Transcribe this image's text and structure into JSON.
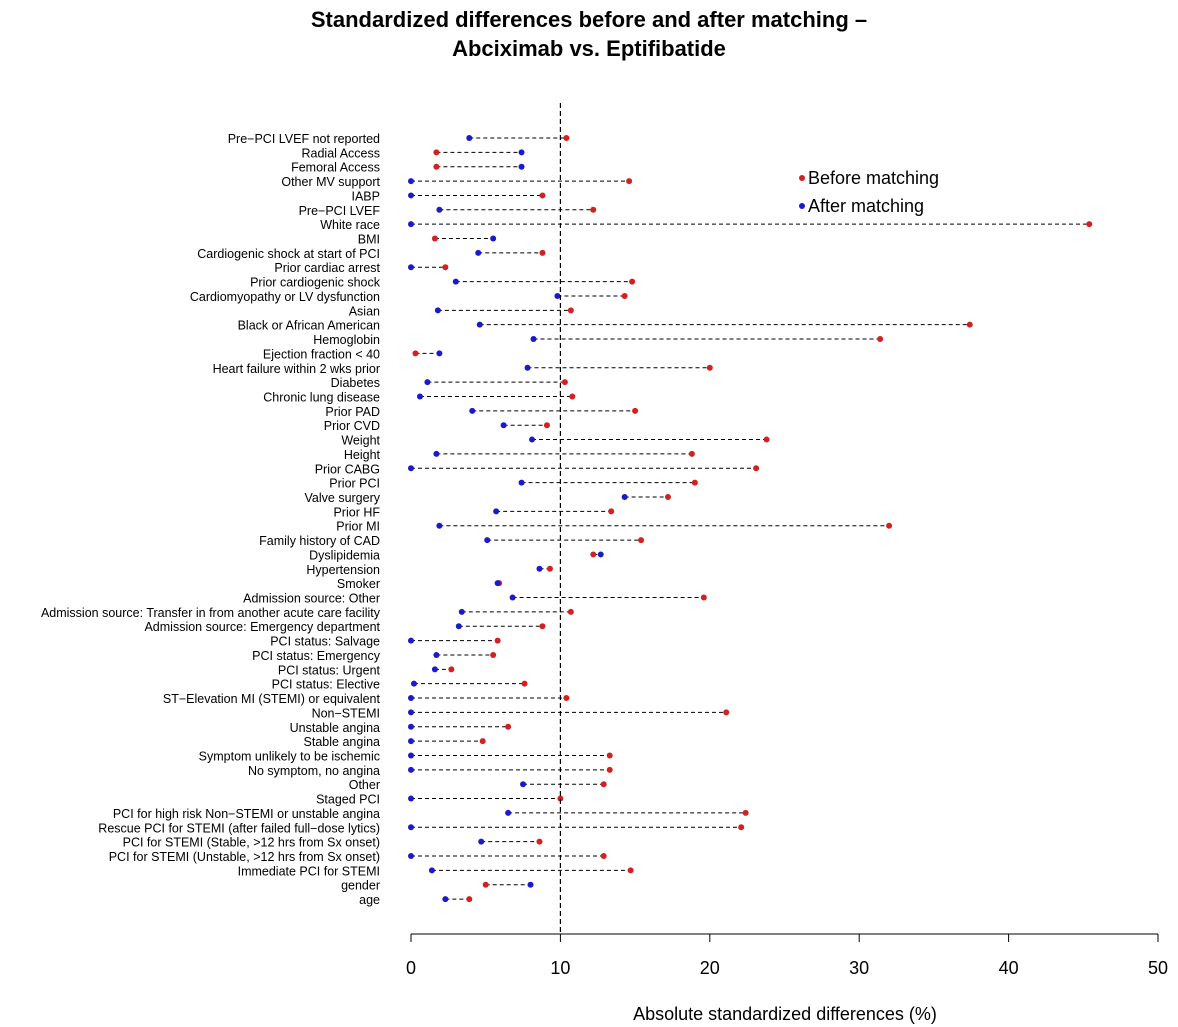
{
  "title_line1": "Standardized differences before and after matching –",
  "title_line2": "Abciximab vs. Eptifibatide",
  "colors": {
    "before": "#d42020",
    "after": "#1a1acc"
  },
  "chart_data": {
    "type": "scatter",
    "title": "Standardized differences before and after matching – Abciximab vs. Eptifibatide",
    "xlabel": "Absolute standardized differences (%)",
    "ylabel": "",
    "xlim": [
      0,
      50
    ],
    "xticks": [
      0,
      10,
      20,
      30,
      40,
      50
    ],
    "reference_line": 10,
    "legend_position": "top-right",
    "legend": [
      "Before matching",
      "After matching"
    ],
    "categories": [
      "Pre−PCI LVEF not reported",
      "Radial Access",
      "Femoral Access",
      "Other MV support",
      "IABP",
      "Pre−PCI LVEF",
      "White race",
      "BMI",
      "Cardiogenic shock at start of PCI",
      "Prior cardiac arrest",
      "Prior cardiogenic shock",
      "Cardiomyopathy or LV dysfunction",
      "Asian",
      "Black or African American",
      "Hemoglobin",
      "Ejection fraction < 40",
      "Heart failure within 2 wks prior",
      "Diabetes",
      "Chronic lung disease",
      "Prior PAD",
      "Prior CVD",
      "Weight",
      "Height",
      "Prior CABG",
      "Prior PCI",
      "Valve surgery",
      "Prior HF",
      "Prior MI",
      "Family history of CAD",
      "Dyslipidemia",
      "Hypertension",
      "Smoker",
      "Admission source:  Other",
      "Admission source:  Transfer in from another acute care facility",
      "Admission source:  Emergency department",
      "PCI status: Salvage",
      "PCI status: Emergency",
      "PCI status: Urgent",
      "PCI status: Elective",
      "ST−Elevation MI (STEMI) or equivalent",
      "Non−STEMI",
      "Unstable angina",
      "Stable angina",
      "Symptom unlikely to be ischemic",
      "No symptom, no angina",
      "Other",
      "Staged PCI",
      "PCI for high risk Non−STEMI or unstable angina",
      "Rescue PCI for STEMI (after failed full−dose lytics)",
      "PCI for STEMI (Stable, >12 hrs from Sx onset)",
      "PCI for STEMI (Unstable, >12 hrs from Sx onset)",
      "Immediate PCI for STEMI",
      "gender",
      "age"
    ],
    "series": [
      {
        "name": "Before matching",
        "values": [
          10.4,
          1.7,
          1.7,
          14.6,
          8.8,
          12.2,
          45.4,
          1.6,
          8.8,
          2.3,
          14.8,
          14.3,
          10.7,
          37.4,
          31.4,
          0.3,
          20.0,
          10.3,
          10.8,
          15.0,
          9.1,
          23.8,
          18.8,
          23.1,
          19.0,
          17.2,
          13.4,
          32.0,
          15.4,
          12.2,
          9.3,
          5.9,
          19.6,
          10.7,
          8.8,
          5.8,
          5.5,
          2.7,
          7.6,
          10.4,
          21.1,
          6.5,
          4.8,
          13.3,
          13.3,
          12.9,
          10.0,
          22.4,
          22.1,
          8.6,
          12.9,
          14.7,
          5.0,
          3.9
        ]
      },
      {
        "name": "After matching",
        "values": [
          3.9,
          7.4,
          7.4,
          0.0,
          0.0,
          1.9,
          0.0,
          5.5,
          4.5,
          0.0,
          3.0,
          9.8,
          1.8,
          4.6,
          8.2,
          1.9,
          7.8,
          1.1,
          0.6,
          4.1,
          6.2,
          8.1,
          1.7,
          0.0,
          7.4,
          14.3,
          5.7,
          1.9,
          5.1,
          12.7,
          8.6,
          5.8,
          6.8,
          3.4,
          3.2,
          0.0,
          1.7,
          1.6,
          0.2,
          0.0,
          0.0,
          0.0,
          0.0,
          0.0,
          0.0,
          7.5,
          0.0,
          6.5,
          0.0,
          4.7,
          0.0,
          1.4,
          8.0,
          2.3
        ]
      }
    ]
  }
}
